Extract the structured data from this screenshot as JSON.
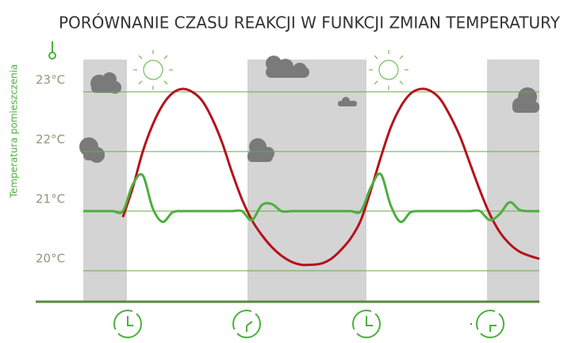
{
  "chart_data": {
    "type": "line",
    "title": "PORÓWNANIE CZASU REAKCJI W FUNKCJI ZMIAN TEMPERATURY",
    "y_label": "Temperatura pomieszczenia",
    "categories": [
      null,
      null,
      null,
      null,
      null,
      null,
      null,
      null,
      null,
      null,
      null,
      null,
      null,
      null,
      null,
      null,
      null,
      null,
      null,
      null,
      null,
      null,
      null,
      null,
      null,
      null,
      null,
      null,
      null,
      null,
      null,
      null,
      null,
      null,
      null,
      null,
      null,
      null,
      null,
      null,
      null,
      null,
      null,
      null,
      null,
      null,
      null
    ],
    "series": [
      {
        "color": "#b5121b",
        "values": [
          null,
          null,
          null,
          null,
          20.9,
          21.4,
          22.0,
          22.45,
          22.78,
          22.98,
          23.05,
          23.0,
          22.85,
          22.55,
          22.15,
          21.65,
          21.2,
          20.85,
          20.6,
          20.4,
          20.25,
          20.15,
          20.1,
          20.1,
          20.12,
          20.2,
          20.35,
          20.55,
          20.85,
          21.35,
          21.9,
          22.4,
          22.75,
          22.97,
          23.05,
          23.02,
          22.88,
          22.6,
          22.25,
          21.8,
          21.35,
          20.95,
          20.65,
          20.45,
          20.32,
          20.25,
          20.2
        ]
      },
      {
        "color": "#4caf3e",
        "values": [
          21,
          21,
          21,
          21,
          21,
          21.45,
          21.6,
          21.05,
          20.82,
          20.98,
          21,
          21,
          21,
          21,
          21,
          21,
          21,
          20.85,
          21.1,
          21.12,
          21.0,
          21,
          21,
          21,
          21,
          21,
          21,
          21,
          21,
          21.4,
          21.62,
          21.1,
          20.82,
          20.98,
          21,
          21,
          21,
          21,
          21,
          21,
          21,
          20.85,
          20.95,
          21.15,
          21.02,
          21,
          21
        ]
      }
    ],
    "ylim": [
      19.48,
      24.01
    ],
    "yticks": [
      {
        "value": 20,
        "label": "20°C"
      },
      {
        "value": 21,
        "label": "21°C"
      },
      {
        "value": 22,
        "label": "22°C"
      },
      {
        "value": 23,
        "label": "23°C"
      }
    ],
    "grid": true
  }
}
